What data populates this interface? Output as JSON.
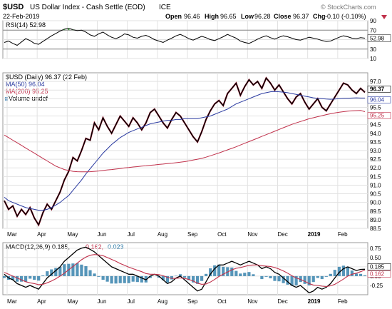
{
  "header": {
    "symbol": "$USD",
    "name": "US Dollar Index - Cash Settle (EOD)",
    "exchange": "ICE",
    "date": "22-Feb-2019",
    "open_label": "Open",
    "open": "96.46",
    "high_label": "High",
    "high": "96.65",
    "low_label": "Low",
    "low": "96.28",
    "close_label": "Close",
    "close": "96.37",
    "chg_label": "Chg",
    "chg": "-0.10 (-0.10%)",
    "watermark": "© StockCharts.com"
  },
  "chart_data": [
    {
      "type": "line",
      "panel": "rsi",
      "legend": "RSI(14) 52.98",
      "ylim": [
        10,
        90
      ],
      "y_ticks": [
        "90",
        "70",
        "50",
        "30",
        "10"
      ],
      "reference_lines": [
        70,
        30
      ],
      "last_value_label": "52.98",
      "series": [
        {
          "name": "RSI(14)",
          "color": "#000000",
          "values": [
            44,
            47,
            42,
            38,
            45,
            52,
            48,
            42,
            40,
            46,
            52,
            58,
            63,
            68,
            72,
            74,
            71,
            69,
            70,
            66,
            60,
            57,
            62,
            66,
            60,
            55,
            52,
            56,
            62,
            60,
            55,
            53,
            57,
            59,
            55,
            50,
            47,
            44,
            49,
            53,
            58,
            61,
            57,
            52,
            49,
            53,
            57,
            54,
            50,
            48,
            52,
            56,
            61,
            57,
            53,
            47,
            44,
            42,
            46,
            51,
            55,
            58,
            54,
            51,
            55,
            58,
            56,
            53,
            50,
            49,
            52,
            55,
            53,
            51,
            48,
            46,
            47,
            51,
            55,
            58,
            56,
            53,
            52,
            54,
            53
          ]
        }
      ]
    },
    {
      "type": "line",
      "panel": "price",
      "x_tick_labels": [
        "Mar",
        "Apr",
        "May",
        "Jun",
        "Jul",
        "Aug",
        "Sep",
        "Oct",
        "Nov",
        "Dec",
        "2019",
        "Feb"
      ],
      "ylim": [
        88.5,
        97.5
      ],
      "y_ticks": [
        "97.0",
        "96.5",
        "96.0",
        "95.5",
        "95.0",
        "94.5",
        "94.0",
        "93.5",
        "93.0",
        "92.5",
        "92.0",
        "91.5",
        "91.0",
        "90.5",
        "90.0",
        "89.5",
        "89.0",
        "88.5"
      ],
      "legend": [
        {
          "text": "$USD (Daily) 96.37 (22 Feb)",
          "color": "#000000"
        },
        {
          "text": "MA(50) 96.04",
          "color": "#2a3aa0"
        },
        {
          "text": "MA(200) 95.25",
          "color": "#c0304a"
        },
        {
          "text": "Volume undef",
          "color": "#000000"
        }
      ],
      "last_labels": [
        {
          "text": "96.37",
          "color": "#000000"
        },
        {
          "text": "96.04",
          "color": "#2a3aa0"
        },
        {
          "text": "95.25",
          "color": "#c0304a"
        }
      ],
      "series": [
        {
          "name": "$USD (Daily)",
          "color": "#000000",
          "values": [
            90.1,
            89.6,
            89.8,
            89.2,
            89.6,
            89.3,
            89.7,
            89.1,
            88.7,
            89.4,
            89.9,
            89.6,
            90.1,
            90.6,
            91.3,
            91.8,
            92.6,
            92.4,
            93.0,
            93.7,
            93.6,
            94.6,
            94.2,
            94.9,
            94.4,
            94.0,
            94.5,
            95.0,
            94.7,
            94.4,
            94.9,
            94.6,
            94.2,
            94.6,
            95.2,
            95.4,
            95.0,
            94.6,
            94.3,
            94.8,
            95.2,
            95.0,
            94.6,
            94.2,
            93.8,
            93.5,
            94.1,
            94.8,
            95.3,
            95.7,
            95.9,
            95.6,
            96.3,
            96.6,
            96.9,
            96.2,
            96.7,
            97.1,
            96.8,
            97.0,
            96.6,
            97.2,
            96.9,
            96.5,
            96.8,
            96.4,
            96.0,
            95.7,
            96.1,
            96.3,
            95.8,
            95.4,
            95.7,
            96.0,
            95.5,
            95.3,
            95.7,
            96.1,
            96.5,
            96.9,
            96.8,
            96.5,
            96.3,
            96.6,
            96.37
          ]
        },
        {
          "name": "MA(50)",
          "color": "#2a3aa0",
          "values": [
            90.3,
            90.1,
            90.0,
            89.9,
            89.8,
            89.7,
            89.65,
            89.6,
            89.55,
            89.55,
            89.6,
            89.7,
            89.85,
            90.0,
            90.2,
            90.4,
            90.7,
            91.0,
            91.3,
            91.65,
            91.95,
            92.25,
            92.55,
            92.85,
            93.1,
            93.35,
            93.55,
            93.75,
            93.9,
            94.05,
            94.15,
            94.25,
            94.35,
            94.45,
            94.55,
            94.6,
            94.65,
            94.7,
            94.75,
            94.75,
            94.8,
            94.8,
            94.85,
            94.85,
            94.85,
            94.85,
            94.9,
            94.95,
            95.0,
            95.1,
            95.2,
            95.3,
            95.4,
            95.55,
            95.7,
            95.8,
            95.9,
            96.0,
            96.1,
            96.2,
            96.3,
            96.35,
            96.4,
            96.42,
            96.4,
            96.38,
            96.35,
            96.3,
            96.25,
            96.2,
            96.15,
            96.1,
            96.05,
            96.02,
            96.0,
            95.98,
            95.97,
            95.98,
            96.0,
            96.02,
            96.03,
            96.04,
            96.05,
            96.04,
            96.04
          ]
        },
        {
          "name": "MA(200)",
          "color": "#c0304a",
          "values": [
            93.9,
            93.75,
            93.6,
            93.45,
            93.3,
            93.15,
            93.0,
            92.85,
            92.7,
            92.55,
            92.4,
            92.25,
            92.1,
            92.0,
            91.9,
            91.85,
            91.8,
            91.78,
            91.77,
            91.77,
            91.78,
            91.8,
            91.82,
            91.85,
            91.88,
            91.9,
            91.93,
            91.96,
            92.0,
            92.02,
            92.05,
            92.07,
            92.1,
            92.12,
            92.15,
            92.17,
            92.2,
            92.22,
            92.25,
            92.27,
            92.3,
            92.33,
            92.36,
            92.4,
            92.45,
            92.5,
            92.55,
            92.62,
            92.7,
            92.78,
            92.86,
            92.95,
            93.04,
            93.13,
            93.22,
            93.32,
            93.42,
            93.52,
            93.62,
            93.72,
            93.82,
            93.92,
            94.02,
            94.12,
            94.22,
            94.32,
            94.42,
            94.52,
            94.6,
            94.68,
            94.76,
            94.84,
            94.9,
            94.96,
            95.02,
            95.08,
            95.13,
            95.18,
            95.22,
            95.25,
            95.28,
            95.3,
            95.31,
            95.32,
            95.25
          ]
        }
      ]
    },
    {
      "type": "line",
      "panel": "macd",
      "legend": [
        {
          "text": "MACD(12,26,9) 0.185,",
          "color": "#000000"
        },
        {
          "text": "0.162,",
          "color": "#c0304a"
        },
        {
          "text": "0.023",
          "color": "#2a7aa8"
        }
      ],
      "ylim": [
        -0.5,
        0.9
      ],
      "y_ticks": [
        "0.75",
        "0.50",
        "0.25",
        "0.00",
        "-0.25"
      ],
      "last_labels": [
        {
          "text": "0.185",
          "color": "#000000"
        },
        {
          "text": "0.162",
          "color": "#c0304a"
        }
      ],
      "series": [
        {
          "name": "MACD",
          "color": "#000000",
          "values": [
            0.05,
            -0.05,
            -0.1,
            -0.2,
            -0.25,
            -0.3,
            -0.25,
            -0.3,
            -0.35,
            -0.2,
            -0.05,
            0.05,
            0.15,
            0.25,
            0.4,
            0.5,
            0.6,
            0.7,
            0.75,
            0.78,
            0.72,
            0.65,
            0.55,
            0.45,
            0.35,
            0.25,
            0.2,
            0.15,
            0.1,
            0.05,
            0.05,
            0.0,
            -0.05,
            -0.1,
            0.0,
            0.05,
            0.0,
            -0.1,
            -0.2,
            -0.15,
            -0.05,
            0.0,
            -0.1,
            -0.2,
            -0.3,
            -0.4,
            -0.35,
            -0.15,
            0.05,
            0.2,
            0.3,
            0.3,
            0.35,
            0.4,
            0.35,
            0.3,
            0.35,
            0.4,
            0.35,
            0.3,
            0.2,
            0.25,
            0.2,
            0.1,
            0.05,
            -0.05,
            -0.15,
            -0.25,
            -0.3,
            -0.25,
            -0.35,
            -0.45,
            -0.4,
            -0.3,
            -0.35,
            -0.3,
            -0.2,
            -0.05,
            0.1,
            0.2,
            0.25,
            0.2,
            0.15,
            0.18,
            0.185
          ]
        },
        {
          "name": "Signal",
          "color": "#c0304a",
          "values": [
            0.1,
            0.05,
            0.0,
            -0.05,
            -0.1,
            -0.15,
            -0.18,
            -0.2,
            -0.23,
            -0.22,
            -0.18,
            -0.13,
            -0.07,
            0.0,
            0.08,
            0.17,
            0.26,
            0.35,
            0.44,
            0.51,
            0.56,
            0.58,
            0.57,
            0.55,
            0.5,
            0.45,
            0.4,
            0.34,
            0.29,
            0.24,
            0.2,
            0.16,
            0.12,
            0.07,
            0.05,
            0.05,
            0.04,
            0.01,
            -0.03,
            -0.06,
            -0.06,
            -0.05,
            -0.06,
            -0.09,
            -0.13,
            -0.19,
            -0.22,
            -0.21,
            -0.16,
            -0.09,
            -0.01,
            0.05,
            0.11,
            0.17,
            0.21,
            0.23,
            0.26,
            0.29,
            0.3,
            0.3,
            0.28,
            0.27,
            0.26,
            0.23,
            0.19,
            0.14,
            0.08,
            0.01,
            -0.05,
            -0.09,
            -0.14,
            -0.2,
            -0.24,
            -0.25,
            -0.27,
            -0.28,
            -0.26,
            -0.22,
            -0.15,
            -0.08,
            0.0,
            0.05,
            0.08,
            0.12,
            0.162
          ]
        },
        {
          "name": "Histogram",
          "color": "#2a7aa8",
          "kind": "bars",
          "values": [
            -0.05,
            -0.1,
            -0.1,
            -0.15,
            -0.15,
            -0.15,
            -0.07,
            -0.1,
            -0.12,
            0.02,
            0.13,
            0.18,
            0.22,
            0.25,
            0.32,
            0.33,
            0.34,
            0.35,
            0.31,
            0.27,
            0.16,
            0.07,
            -0.02,
            -0.1,
            -0.15,
            -0.2,
            -0.2,
            -0.19,
            -0.19,
            -0.19,
            -0.15,
            -0.16,
            -0.17,
            -0.17,
            -0.05,
            0.0,
            -0.04,
            -0.11,
            -0.17,
            -0.09,
            0.01,
            0.05,
            -0.04,
            -0.11,
            -0.17,
            -0.21,
            -0.13,
            0.06,
            0.21,
            0.29,
            0.31,
            0.25,
            0.24,
            0.23,
            0.14,
            0.07,
            0.09,
            0.11,
            0.05,
            0.0,
            -0.08,
            -0.02,
            -0.06,
            -0.13,
            -0.14,
            -0.19,
            -0.23,
            -0.26,
            -0.25,
            -0.16,
            -0.21,
            -0.25,
            -0.16,
            -0.05,
            -0.08,
            -0.02,
            0.06,
            0.17,
            0.25,
            0.28,
            0.25,
            0.15,
            0.07,
            0.06,
            0.023
          ]
        }
      ]
    }
  ]
}
